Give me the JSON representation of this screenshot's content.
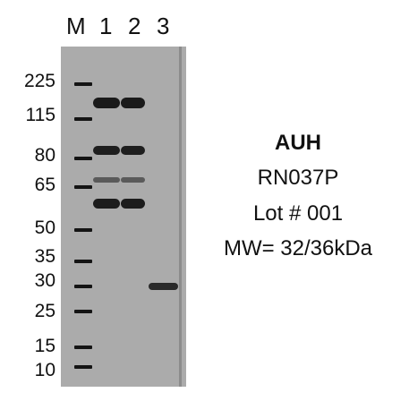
{
  "lane_headers": [
    "M",
    "1",
    "2",
    "3"
  ],
  "mw_markers": [
    "225",
    "115",
    "80",
    "65",
    "50",
    "35",
    "30",
    "25",
    "15",
    "10"
  ],
  "info": {
    "protein": "AUH",
    "catalog": "RN037P",
    "lot": "Lot # 001",
    "mw": "MW= 32/36kDa"
  },
  "colors": {
    "membrane": "#ababab",
    "band": "#1a1a1a",
    "background": "#ffffff"
  }
}
